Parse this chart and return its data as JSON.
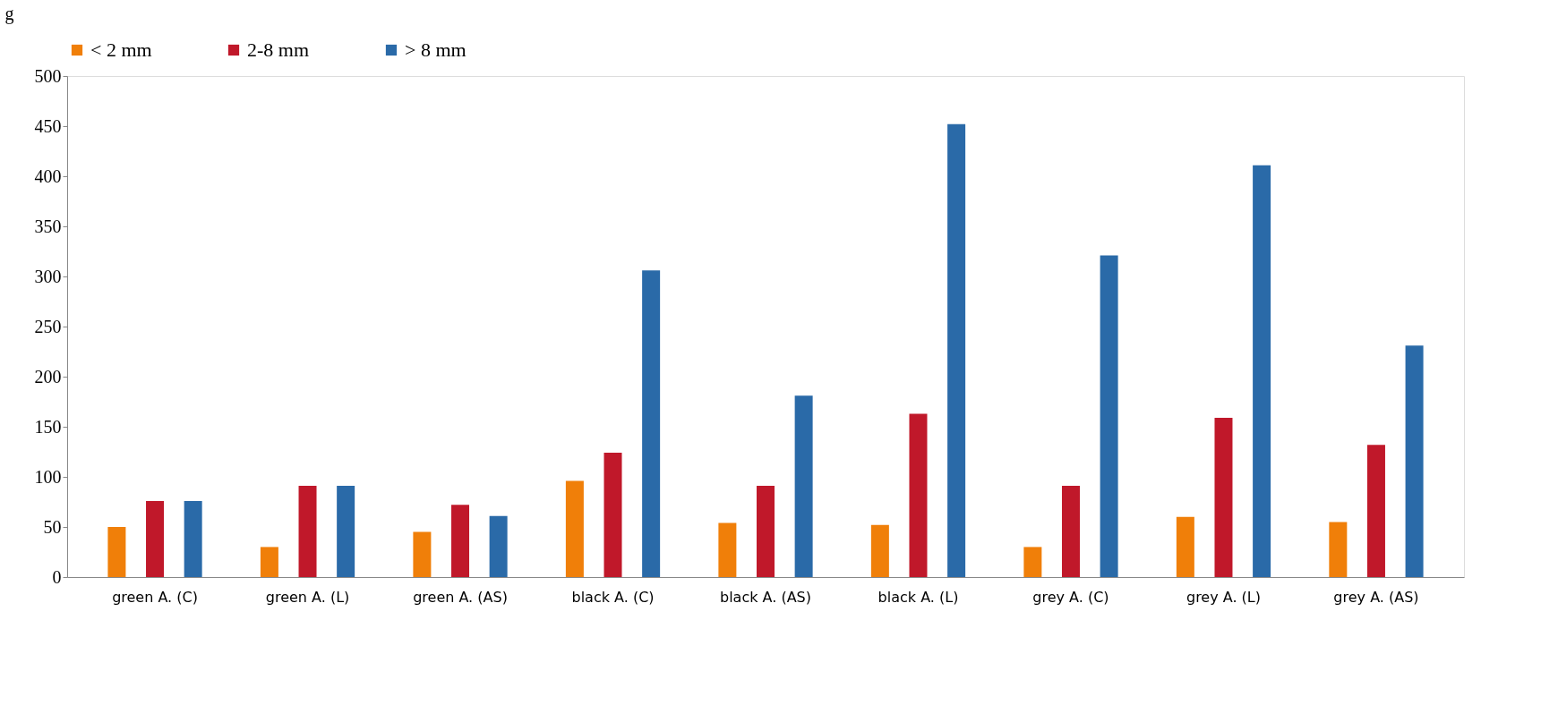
{
  "chart_data": {
    "type": "bar",
    "ylabel": "g",
    "categories": [
      "green A. (C)",
      "green A. (L)",
      "green A. (AS)",
      "black A. (C)",
      "black A. (AS)",
      "black A. (L)",
      "grey A. (C)",
      "grey A. (L)",
      "grey A. (AS)"
    ],
    "series": [
      {
        "name": "< 2 mm",
        "color": "#f07f09",
        "values": [
          50,
          30,
          45,
          96,
          54,
          52,
          30,
          60,
          55
        ]
      },
      {
        "name": "2-8 mm",
        "color": "#c0182a",
        "values": [
          76,
          91,
          72,
          124,
          91,
          163,
          91,
          159,
          132
        ]
      },
      {
        "name": "> 8 mm",
        "color": "#2a6aa8",
        "values": [
          76,
          91,
          61,
          306,
          181,
          452,
          321,
          411,
          231
        ]
      }
    ],
    "ylim": [
      0,
      500
    ],
    "yticks": [
      0,
      50,
      100,
      150,
      200,
      250,
      300,
      350,
      400,
      450,
      500
    ],
    "grid": false,
    "legend": "top"
  }
}
